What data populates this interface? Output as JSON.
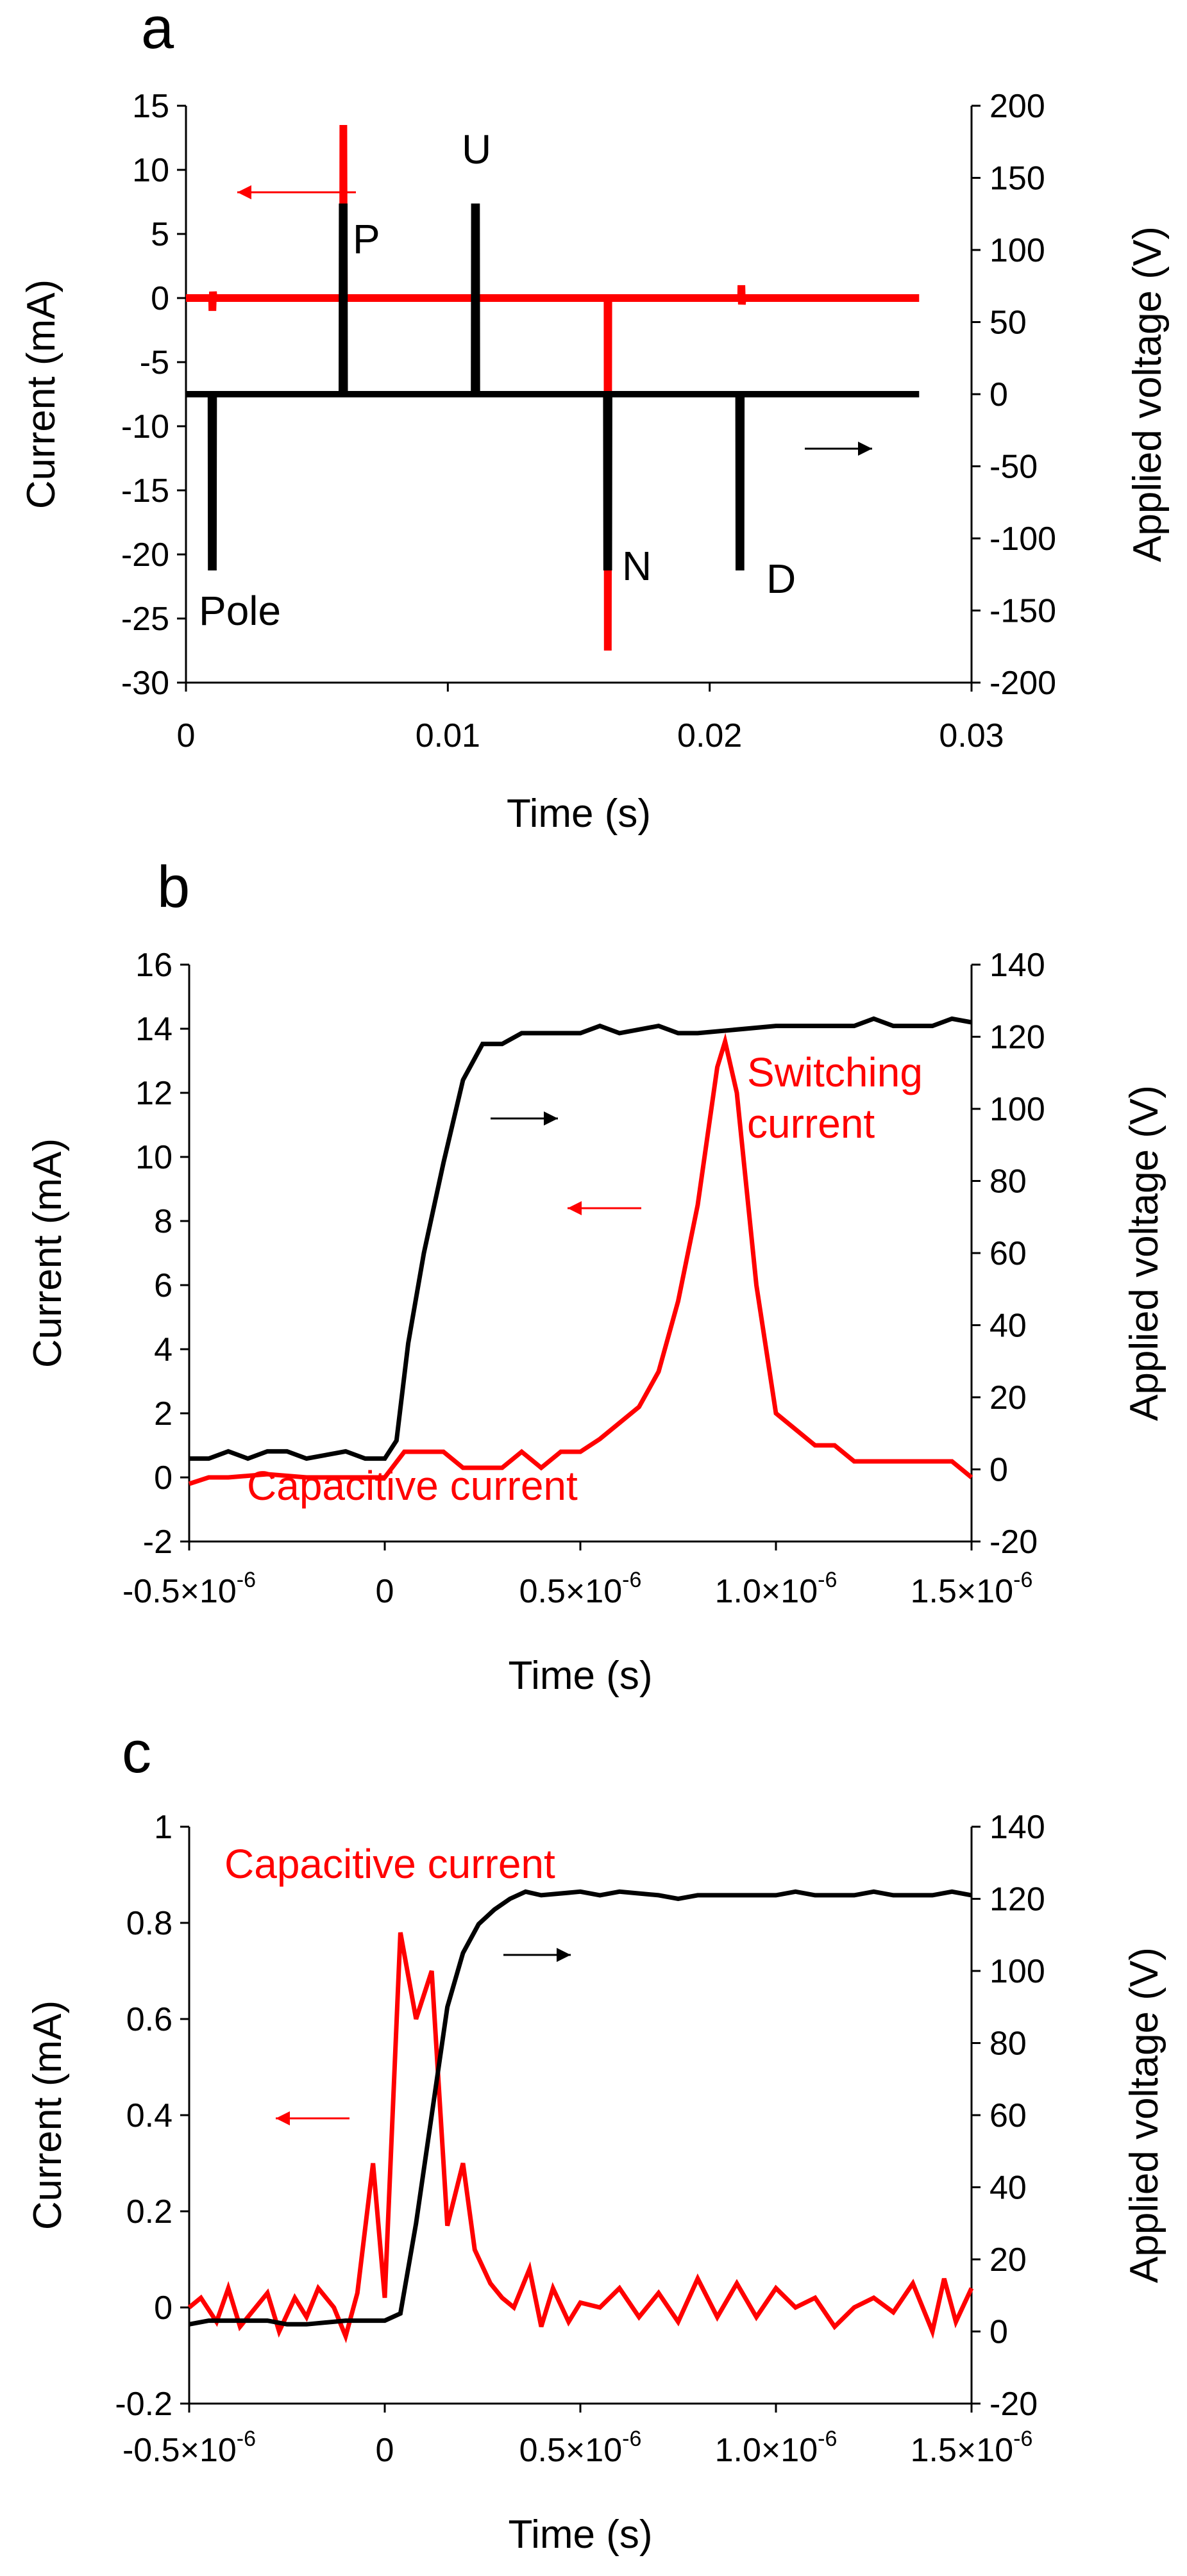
{
  "chart_data": [
    {
      "panel": "a",
      "type": "line",
      "xlabel": "Time (s)",
      "ylabel": "Current (mA)",
      "y2label": "Applied voltage (V)",
      "xlim": [
        0,
        0.03
      ],
      "ylim": [
        -30,
        15
      ],
      "y2lim": [
        -200,
        200
      ],
      "xticks": [
        0,
        0.01,
        0.02,
        0.03
      ],
      "xtick_labels": [
        "0",
        "0.01",
        "0.02",
        "0.03"
      ],
      "yticks": [
        -30,
        -25,
        -20,
        -15,
        -10,
        -5,
        0,
        5,
        10,
        15
      ],
      "ytick_labels": [
        "-30",
        "-25",
        "-20",
        "-15",
        "-10",
        "-5",
        "0",
        "5",
        "10",
        "15"
      ],
      "y2ticks": [
        -200,
        -150,
        -100,
        -50,
        0,
        50,
        100,
        150,
        200
      ],
      "y2tick_labels": [
        "-200",
        "-150",
        "-100",
        "-50",
        "0",
        "50",
        "100",
        "150",
        "200"
      ],
      "series": [
        {
          "name": "current",
          "axis": "left",
          "color": "#ff0000",
          "x": [
            0.0,
            0.001,
            0.00101,
            0.00103,
            0.00105,
            0.006,
            0.00601,
            0.00603,
            0.00605,
            0.0111,
            0.01111,
            0.01113,
            0.01115,
            0.0161,
            0.01611,
            0.01613,
            0.01615,
            0.0212,
            0.02121,
            0.02123,
            0.02125,
            0.028
          ],
          "values": [
            0,
            0,
            -1.0,
            0.5,
            0,
            0,
            13.5,
            0,
            0,
            0,
            0.2,
            0,
            0,
            0,
            -27.5,
            0,
            0,
            0,
            1.0,
            -0.5,
            0,
            0
          ]
        },
        {
          "name": "voltage",
          "axis": "right",
          "color": "#000000",
          "x": [
            0.0,
            0.00095,
            0.00096,
            0.00105,
            0.00106,
            0.00595,
            0.00596,
            0.00605,
            0.00606,
            0.011,
            0.01101,
            0.0111,
            0.01111,
            0.01605,
            0.01606,
            0.01615,
            0.01616,
            0.0211,
            0.02111,
            0.0212,
            0.02121,
            0.028
          ],
          "values": [
            0,
            0,
            -120,
            -120,
            0,
            0,
            130,
            130,
            0,
            0,
            130,
            130,
            0,
            0,
            -120,
            -120,
            0,
            0,
            -120,
            -120,
            0,
            0
          ]
        }
      ],
      "annotations": [
        "P",
        "U",
        "N",
        "D",
        "Pole"
      ]
    },
    {
      "panel": "b",
      "type": "line",
      "xlabel": "Time (s)",
      "ylabel": "Current (mA)",
      "y2label": "Applied voltage (V)",
      "xlim": [
        -0.5,
        1.5
      ],
      "x_unit": "×10^-6 s",
      "ylim": [
        -2,
        16
      ],
      "y2lim": [
        -20,
        140
      ],
      "xticks": [
        -0.5,
        0,
        0.5,
        1.0,
        1.5
      ],
      "xtick_labels": [
        "-0.5×10",
        "0",
        "0.5×10",
        "1.0×10",
        "1.5×10"
      ],
      "xtick_exp": "-6",
      "yticks": [
        -2,
        0,
        2,
        4,
        6,
        8,
        10,
        12,
        14,
        16
      ],
      "ytick_labels": [
        "-2",
        "0",
        "2",
        "4",
        "6",
        "8",
        "10",
        "12",
        "14",
        "16"
      ],
      "y2ticks": [
        -20,
        0,
        20,
        40,
        60,
        80,
        100,
        120,
        140
      ],
      "y2tick_labels": [
        "-20",
        "0",
        "20",
        "40",
        "60",
        "80",
        "100",
        "120",
        "140"
      ],
      "series": [
        {
          "name": "current",
          "axis": "left",
          "color": "#ff0000",
          "x": [
            -0.5,
            -0.45,
            -0.4,
            -0.3,
            -0.2,
            0.0,
            0.05,
            0.1,
            0.15,
            0.2,
            0.3,
            0.35,
            0.4,
            0.45,
            0.5,
            0.55,
            0.6,
            0.65,
            0.7,
            0.75,
            0.8,
            0.85,
            0.87,
            0.9,
            0.95,
            1.0,
            1.05,
            1.1,
            1.15,
            1.2,
            1.3,
            1.4,
            1.45,
            1.5
          ],
          "values": [
            -0.2,
            0.0,
            0.0,
            0.1,
            0.0,
            0.0,
            0.8,
            0.8,
            0.8,
            0.3,
            0.3,
            0.8,
            0.3,
            0.8,
            0.8,
            1.2,
            1.7,
            2.2,
            3.3,
            5.5,
            8.5,
            12.8,
            13.6,
            12.0,
            6.0,
            2.0,
            1.5,
            1.0,
            1.0,
            0.5,
            0.5,
            0.5,
            0.5,
            0.0
          ]
        },
        {
          "name": "voltage",
          "axis": "right",
          "color": "#000000",
          "x": [
            -0.5,
            -0.45,
            -0.4,
            -0.35,
            -0.3,
            -0.25,
            -0.2,
            -0.1,
            -0.05,
            0.0,
            0.03,
            0.06,
            0.1,
            0.15,
            0.2,
            0.25,
            0.3,
            0.35,
            0.5,
            0.55,
            0.6,
            0.7,
            0.75,
            0.8,
            1.0,
            1.2,
            1.25,
            1.3,
            1.4,
            1.45,
            1.5
          ],
          "values": [
            3,
            3,
            5,
            3,
            5,
            5,
            3,
            5,
            3,
            3,
            8,
            35,
            60,
            85,
            108,
            118,
            118,
            121,
            121,
            123,
            121,
            123,
            121,
            121,
            123,
            123,
            125,
            123,
            123,
            125,
            124
          ]
        }
      ],
      "annotations": [
        "Switching current",
        "Capacitive current"
      ]
    },
    {
      "panel": "c",
      "type": "line",
      "xlabel": "Time (s)",
      "ylabel": "Current (mA)",
      "y2label": "Applied voltage (V)",
      "xlim": [
        -0.5,
        1.5
      ],
      "x_unit": "×10^-6 s",
      "ylim": [
        -0.2,
        1.0
      ],
      "y2lim": [
        -20,
        140
      ],
      "xticks": [
        -0.5,
        0,
        0.5,
        1.0,
        1.5
      ],
      "xtick_labels": [
        "-0.5×10",
        "0",
        "0.5×10",
        "1.0×10",
        "1.5×10"
      ],
      "xtick_exp": "-6",
      "yticks": [
        -0.2,
        0,
        0.2,
        0.4,
        0.6,
        0.8,
        1.0
      ],
      "ytick_labels": [
        "-0.2",
        "0",
        "0.2",
        "0.4",
        "0.6",
        "0.8",
        "1"
      ],
      "y2ticks": [
        -20,
        0,
        20,
        40,
        60,
        80,
        100,
        120,
        140
      ],
      "y2tick_labels": [
        "-20",
        "0",
        "20",
        "40",
        "60",
        "80",
        "100",
        "120",
        "140"
      ],
      "series": [
        {
          "name": "current",
          "axis": "left",
          "color": "#ff0000",
          "x": [
            -0.5,
            -0.47,
            -0.43,
            -0.4,
            -0.37,
            -0.33,
            -0.3,
            -0.27,
            -0.23,
            -0.2,
            -0.17,
            -0.13,
            -0.1,
            -0.07,
            -0.03,
            0.0,
            0.04,
            0.08,
            0.12,
            0.16,
            0.2,
            0.23,
            0.27,
            0.3,
            0.33,
            0.37,
            0.4,
            0.43,
            0.47,
            0.5,
            0.55,
            0.6,
            0.65,
            0.7,
            0.75,
            0.8,
            0.85,
            0.9,
            0.95,
            1.0,
            1.05,
            1.1,
            1.15,
            1.2,
            1.25,
            1.3,
            1.35,
            1.4,
            1.43,
            1.46,
            1.5
          ],
          "values": [
            0.0,
            0.02,
            -0.03,
            0.04,
            -0.04,
            0.0,
            0.03,
            -0.05,
            0.02,
            -0.02,
            0.04,
            0.0,
            -0.06,
            0.03,
            0.3,
            0.02,
            0.78,
            0.6,
            0.7,
            0.17,
            0.3,
            0.12,
            0.05,
            0.02,
            0.0,
            0.08,
            -0.04,
            0.04,
            -0.03,
            0.01,
            0.0,
            0.04,
            -0.02,
            0.03,
            -0.03,
            0.06,
            -0.02,
            0.05,
            -0.02,
            0.04,
            0.0,
            0.02,
            -0.04,
            0.0,
            0.02,
            -0.01,
            0.05,
            -0.05,
            0.06,
            -0.03,
            0.04
          ]
        },
        {
          "name": "voltage",
          "axis": "right",
          "color": "#000000",
          "x": [
            -0.5,
            -0.45,
            -0.4,
            -0.3,
            -0.25,
            -0.2,
            -0.1,
            -0.05,
            0.0,
            0.04,
            0.08,
            0.12,
            0.16,
            0.2,
            0.24,
            0.28,
            0.32,
            0.36,
            0.4,
            0.5,
            0.55,
            0.6,
            0.7,
            0.75,
            0.8,
            1.0,
            1.05,
            1.1,
            1.2,
            1.25,
            1.3,
            1.4,
            1.45,
            1.5
          ],
          "values": [
            2,
            3,
            3,
            3,
            2,
            2,
            3,
            3,
            3,
            5,
            30,
            60,
            90,
            105,
            113,
            117,
            120,
            122,
            121,
            122,
            121,
            122,
            121,
            120,
            121,
            121,
            122,
            121,
            121,
            122,
            121,
            121,
            122,
            121
          ]
        }
      ],
      "annotations": [
        "Capacitive current"
      ]
    }
  ],
  "colors": {
    "current": "#ff0000",
    "voltage": "#000000"
  }
}
